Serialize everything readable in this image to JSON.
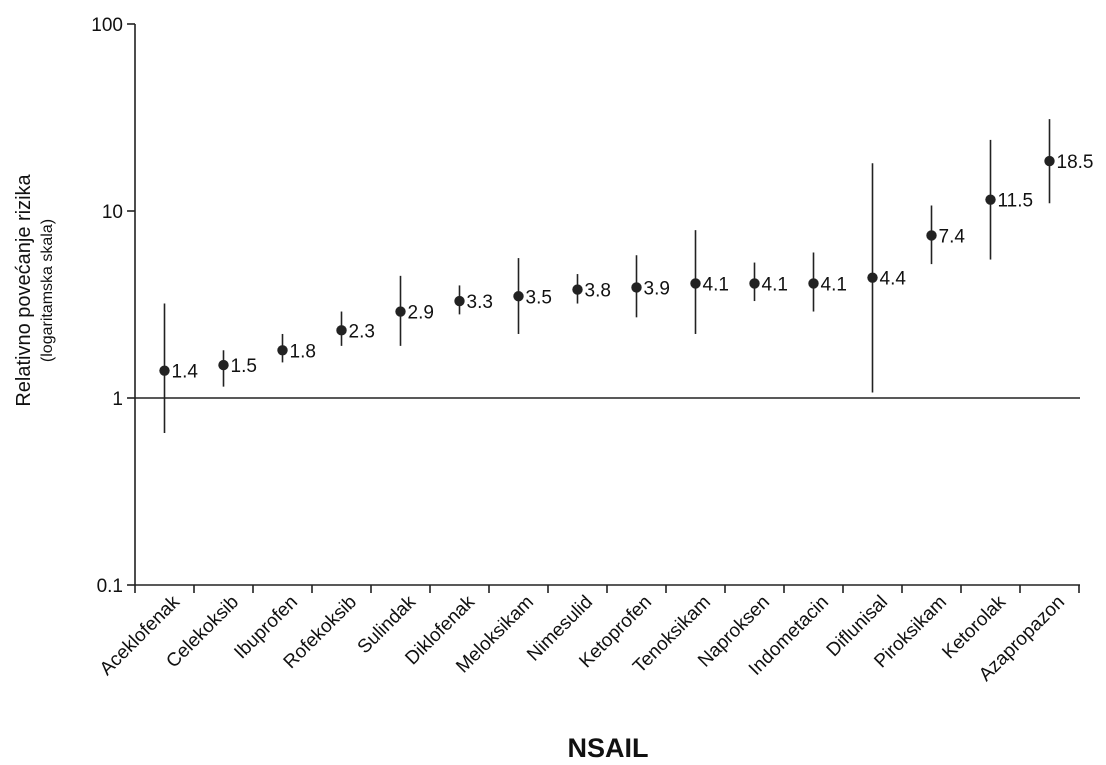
{
  "chart_data": {
    "type": "scatter",
    "ylabel": "Relativno povećanje rizika",
    "ylabel_note": "(logaritamska skala)",
    "xlabel": "NSAIL",
    "y_scale": "log",
    "ylim": [
      0.1,
      100
    ],
    "y_ticks": [
      "0.1",
      "1",
      "10",
      "100"
    ],
    "reference_line": 1,
    "grid": false,
    "series": [
      {
        "categories": [
          "Aceklofenak",
          "Celekoksib",
          "Ibuprofen",
          "Rofekoksib",
          "Sulindak",
          "Diklofenak",
          "Meloksikam",
          "Nimesulid",
          "Ketoprofen",
          "Tenoksikam",
          "Naproksen",
          "Indometacin",
          "Diflunisal",
          "Piroksikam",
          "Ketorolak",
          "Azapropazon"
        ],
        "values": [
          1.4,
          1.5,
          1.8,
          2.3,
          2.9,
          3.3,
          3.5,
          3.8,
          3.9,
          4.1,
          4.1,
          4.1,
          4.4,
          7.4,
          11.5,
          18.5
        ],
        "labels": [
          "1.4",
          "1.5",
          "1.8",
          "2.3",
          "2.9",
          "3.3",
          "3.5",
          "3.8",
          "3.9",
          "4.1",
          "4.1",
          "4.1",
          "4.4",
          "7.4",
          "11.5",
          "18.5"
        ],
        "ci_low": [
          0.65,
          1.15,
          1.55,
          1.9,
          1.9,
          2.8,
          2.2,
          3.2,
          2.7,
          2.2,
          3.3,
          2.9,
          1.07,
          5.2,
          5.5,
          11.0
        ],
        "ci_high": [
          3.2,
          1.8,
          2.2,
          2.9,
          4.5,
          4.0,
          5.6,
          4.6,
          5.8,
          7.9,
          5.3,
          6.0,
          18.0,
          10.7,
          24.0,
          31.0
        ]
      }
    ]
  }
}
